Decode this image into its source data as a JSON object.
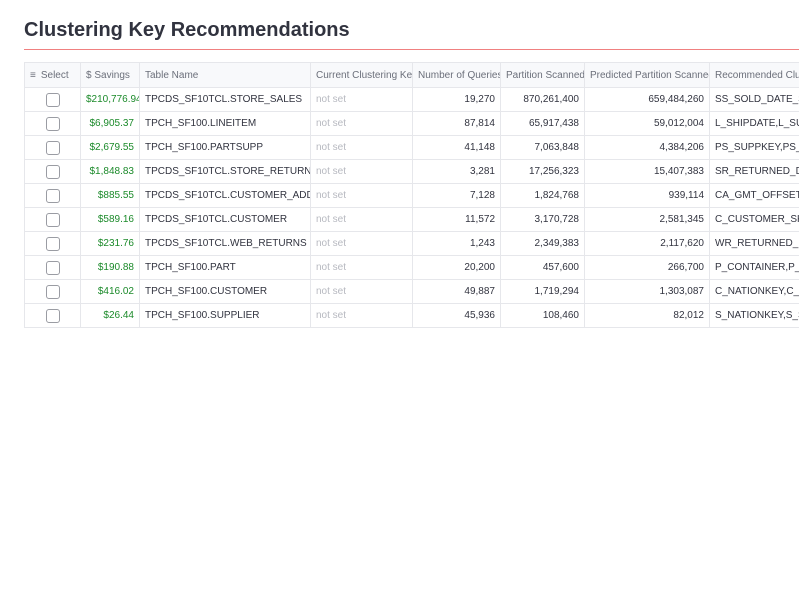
{
  "header": {
    "title": "Clustering Key Recommendations"
  },
  "table": {
    "columns": [
      "Select",
      "$ Savings",
      "Table Name",
      "Current Clustering Key",
      "Number of Queries",
      "Partition Scanned",
      "Predicted Partition Scanned",
      "Recommended Clust"
    ],
    "rows": [
      [
        "$210,776.94",
        "TPCDS_SF10TCL.STORE_SALES",
        "not set",
        "19,270",
        "870,261,400",
        "659,484,260",
        "SS_SOLD_DATE_SK,S"
      ],
      [
        "$6,905.37",
        "TPCH_SF100.LINEITEM",
        "not set",
        "87,814",
        "65,917,438",
        "59,012,004",
        "L_SHIPDATE,L_SUPP"
      ],
      [
        "$2,679.55",
        "TPCH_SF100.PARTSUPP",
        "not set",
        "41,148",
        "7,063,848",
        "4,384,206",
        "PS_SUPPKEY,PS_PAR"
      ],
      [
        "$1,848.83",
        "TPCDS_SF10TCL.STORE_RETURNS",
        "not set",
        "3,281",
        "17,256,323",
        "15,407,383",
        "SR_RETURNED_DATE"
      ],
      [
        "$885.55",
        "TPCDS_SF10TCL.CUSTOMER_ADDRESS",
        "not set",
        "7,128",
        "1,824,768",
        "939,114",
        "CA_GMT_OFFSET,CA_"
      ],
      [
        "$589.16",
        "TPCDS_SF10TCL.CUSTOMER",
        "not set",
        "11,572",
        "3,170,728",
        "2,581,345",
        "C_CUSTOMER_SK,C_"
      ],
      [
        "$231.76",
        "TPCDS_SF10TCL.WEB_RETURNS",
        "not set",
        "1,243",
        "2,349,383",
        "2,117,620",
        "WR_RETURNED_DAT"
      ],
      [
        "$190.88",
        "TPCH_SF100.PART",
        "not set",
        "20,200",
        "457,600",
        "266,700",
        "P_CONTAINER,P_SIZ"
      ],
      [
        "$416.02",
        "TPCH_SF100.CUSTOMER",
        "not set",
        "49,887",
        "1,719,294",
        "1,303,087",
        "C_NATIONKEY,C_MKT"
      ],
      [
        "$26.44",
        "TPCH_SF100.SUPPLIER",
        "not set",
        "45,936",
        "108,460",
        "82,012",
        "S_NATIONKEY,S_SUP"
      ]
    ]
  }
}
